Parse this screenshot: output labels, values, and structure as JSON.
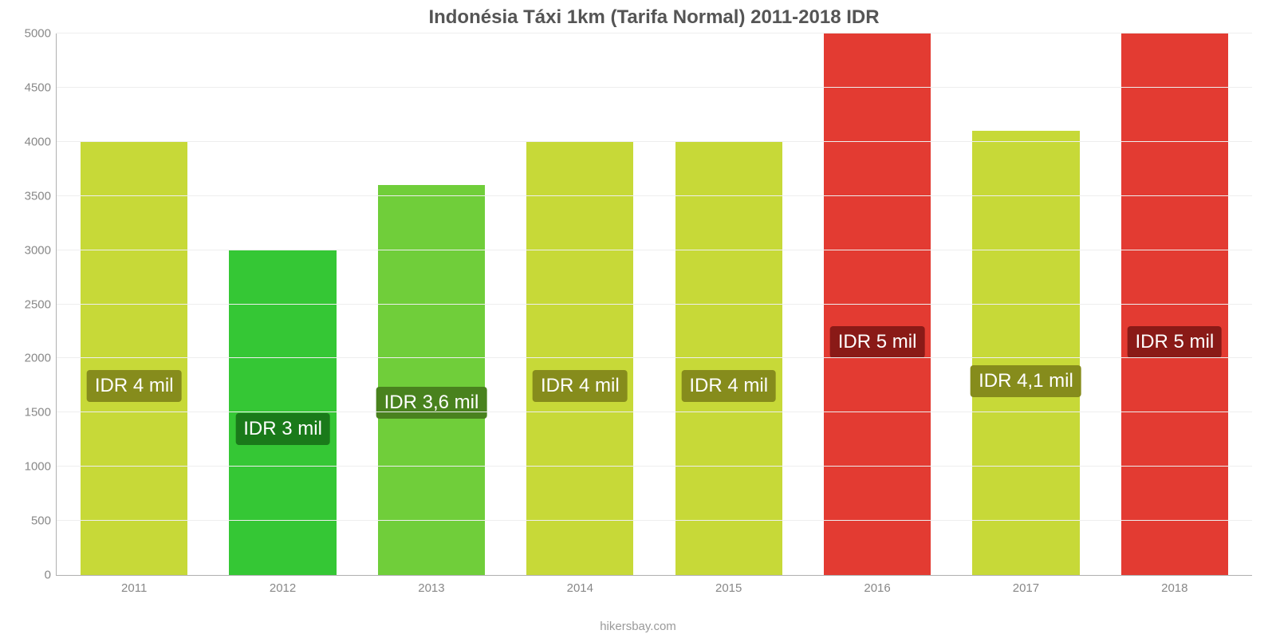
{
  "chart": {
    "type": "bar",
    "title": "Indonésia Táxi 1km (Tarifa Normal) 2011-2018 IDR",
    "title_fontsize": 24,
    "title_color": "#555555",
    "background_color": "#ffffff",
    "grid_color": "#eeeeee",
    "axis_color": "#b0b0b0",
    "tick_label_color": "#888888",
    "tick_fontsize": 15,
    "ylim": [
      0,
      5000
    ],
    "ytick_step": 500,
    "yticks": [
      0,
      500,
      1000,
      1500,
      2000,
      2500,
      3000,
      3500,
      4000,
      4500,
      5000
    ],
    "bar_width_pct": 72,
    "value_label_fontsize": 24,
    "value_label_color": "#ffffff",
    "categories": [
      "2011",
      "2012",
      "2013",
      "2014",
      "2015",
      "2016",
      "2017",
      "2018"
    ],
    "values": [
      4000,
      3000,
      3600,
      4000,
      4000,
      5000,
      4100,
      5000
    ],
    "value_labels": [
      "IDR 4 mil",
      "IDR 3 mil",
      "IDR 3,6 mil",
      "IDR 4 mil",
      "IDR 4 mil",
      "IDR 5 mil",
      "IDR 4,1 mil",
      "IDR 5 mil"
    ],
    "bar_colors": [
      "#c7d938",
      "#35c735",
      "#70ce3a",
      "#c7d938",
      "#c7d938",
      "#e33b32",
      "#c7d938",
      "#e33b32"
    ],
    "label_bg_colors": [
      "#868c1c",
      "#1a7a1a",
      "#49821e",
      "#868c1c",
      "#868c1c",
      "#8a1a17",
      "#868c1c",
      "#8a1a17"
    ],
    "footer": "hikersbay.com",
    "footer_color": "#9a9a9a",
    "footer_fontsize": 15
  }
}
